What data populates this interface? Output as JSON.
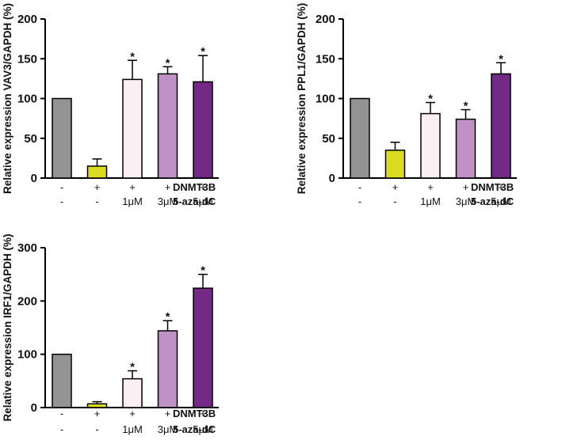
{
  "colors": {
    "axis": "#000000",
    "bar_outline": "#000000",
    "bar_fills": [
      "#939393",
      "#dbdc21",
      "#fbeff3",
      "#bf91c4",
      "#732a86"
    ]
  },
  "conditions": {
    "row_titles": [
      "DNMT3B",
      "5-aza-dC"
    ],
    "dnmt3b": [
      "-",
      "+",
      "+",
      "+",
      "+"
    ],
    "aza": [
      "-",
      "-",
      "1μM",
      "3μM",
      "5μM"
    ]
  },
  "chart_data": [
    {
      "type": "bar",
      "ylabel": "Relative expression VAV3/GAPDH (%)",
      "ylim": [
        0,
        200
      ],
      "yticks": [
        "0",
        "50",
        "100",
        "150",
        "200"
      ],
      "series": [
        {
          "values": [
            100,
            15,
            124,
            131,
            121
          ],
          "errors": [
            0,
            9,
            24,
            9,
            33
          ],
          "significance": [
            "",
            "",
            "*",
            "*",
            "*"
          ]
        }
      ]
    },
    {
      "type": "bar",
      "ylabel": "Relative expression PPL1/GAPDH (%)",
      "ylim": [
        0,
        200
      ],
      "yticks": [
        "0",
        "50",
        "100",
        "150",
        "200"
      ],
      "series": [
        {
          "values": [
            100,
            35,
            81,
            74,
            131
          ],
          "errors": [
            0,
            10,
            14,
            12,
            14
          ],
          "significance": [
            "",
            "",
            "*",
            "*",
            "*"
          ]
        }
      ]
    },
    {
      "type": "bar",
      "ylabel": "Relative expression IRF1/GAPDH (%)",
      "ylim": [
        0,
        300
      ],
      "yticks": [
        "0",
        "100",
        "200",
        "300"
      ],
      "series": [
        {
          "values": [
            100,
            7,
            54,
            144,
            224
          ],
          "errors": [
            0,
            4,
            15,
            19,
            26
          ],
          "significance": [
            "",
            "",
            "*",
            "*",
            "*"
          ]
        }
      ]
    }
  ]
}
